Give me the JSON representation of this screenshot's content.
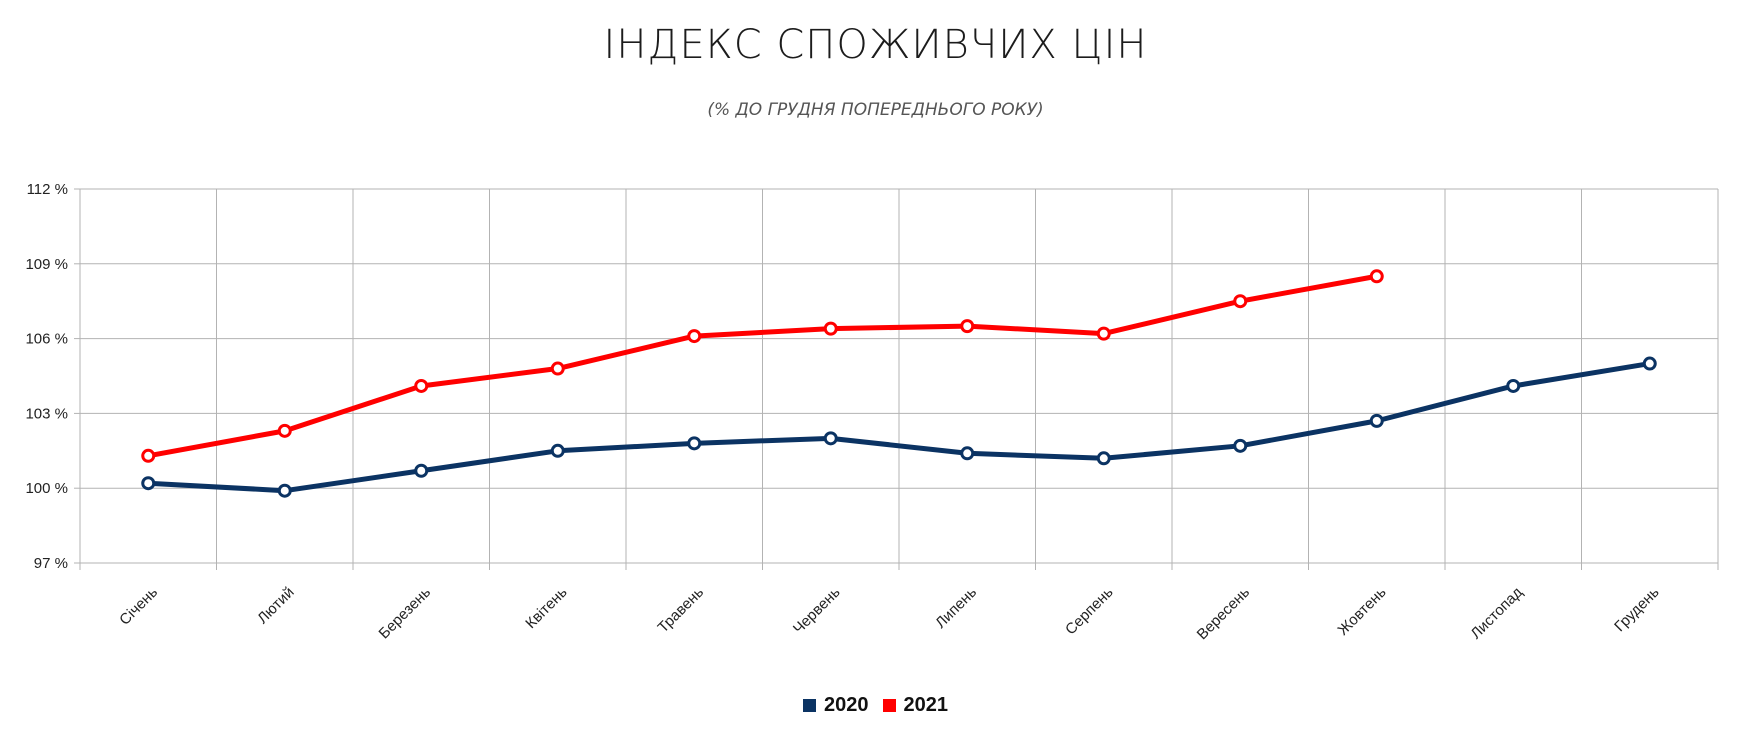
{
  "title": "ІНДЕКС СПОЖИВЧИХ ЦІН",
  "subtitle": "(% ДО ГРУДНЯ ПОПЕРЕДНЬОГО РОКУ)",
  "colors": {
    "series_2020": "#0b3363",
    "series_2021": "#ff0000",
    "grid": "#b3b3b3"
  },
  "chart_data": {
    "type": "line",
    "categories": [
      "Січень",
      "Лютий",
      "Березень",
      "Квітень",
      "Травень",
      "Червень",
      "Липень",
      "Серпень",
      "Вересень",
      "Жовтень",
      "Листопад",
      "Грудень"
    ],
    "ylim": [
      97,
      112
    ],
    "yticks": [
      97,
      100,
      103,
      106,
      109,
      112
    ],
    "ytick_labels": [
      "97 %",
      "100 %",
      "103 %",
      "106 %",
      "109 %",
      "112 %"
    ],
    "grid": true,
    "legend_position": "bottom",
    "series": [
      {
        "name": "2020",
        "color": "#0b3363",
        "values": [
          100.2,
          99.9,
          100.7,
          101.5,
          101.8,
          102.0,
          101.4,
          101.2,
          101.7,
          102.7,
          104.1,
          105.0
        ]
      },
      {
        "name": "2021",
        "color": "#ff0000",
        "values": [
          101.3,
          102.3,
          104.1,
          104.8,
          106.1,
          106.4,
          106.5,
          106.2,
          107.5,
          108.5,
          null,
          null
        ]
      }
    ]
  }
}
